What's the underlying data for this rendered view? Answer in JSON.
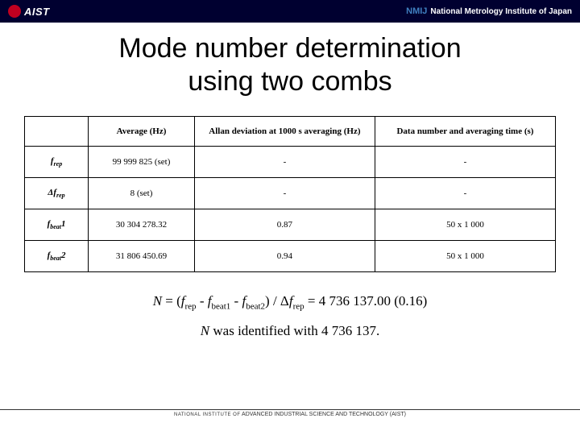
{
  "banner": {
    "left_text": "AIST",
    "right_logo": "NMIJ",
    "right_text": "National Metrology Institute of Japan"
  },
  "title_line1": "Mode number determination",
  "title_line2": "using two combs",
  "table": {
    "headers": [
      "",
      "Average (Hz)",
      "Allan deviation at 1000 s averaging (Hz)",
      "Data number and averaging time (s)"
    ],
    "rows": [
      {
        "label_html": "<i>f</i><sub>rep</sub>",
        "cells": [
          "99 999 825 (set)",
          "-",
          "-"
        ]
      },
      {
        "label_html": "Δ<i>f</i><sub>rep</sub>",
        "cells": [
          "8 (set)",
          "-",
          "-"
        ]
      },
      {
        "label_html": "<i>f</i><sub>beat</sub>1",
        "cells": [
          "30 304 278.32",
          "0.87",
          "50 x 1 000"
        ]
      },
      {
        "label_html": "<i>f</i><sub>beat</sub>2",
        "cells": [
          "31 806 450.69",
          "0.94",
          "50 x 1 000"
        ]
      }
    ]
  },
  "formula_html": "<span class=\"ital\">N</span> = (<span class=\"ital\">f</span><sub>rep</sub> - <span class=\"ital\">f</span><sub>beat1</sub> - <span class=\"ital\">f</span><sub>beat2</sub>) / Δ<span class=\"ital\">f</span><sub>rep</sub> = 4 736 137.00 (0.16)",
  "conclusion_html": "<span class=\"ital\">N</span> was identified with 4 736 137.",
  "footer_html": "<span class=\"small\">NATIONAL INSTITUTE OF</span> ADVANCED INDUSTRIAL SCIENCE AND TECHNOLOGY (AIST)"
}
